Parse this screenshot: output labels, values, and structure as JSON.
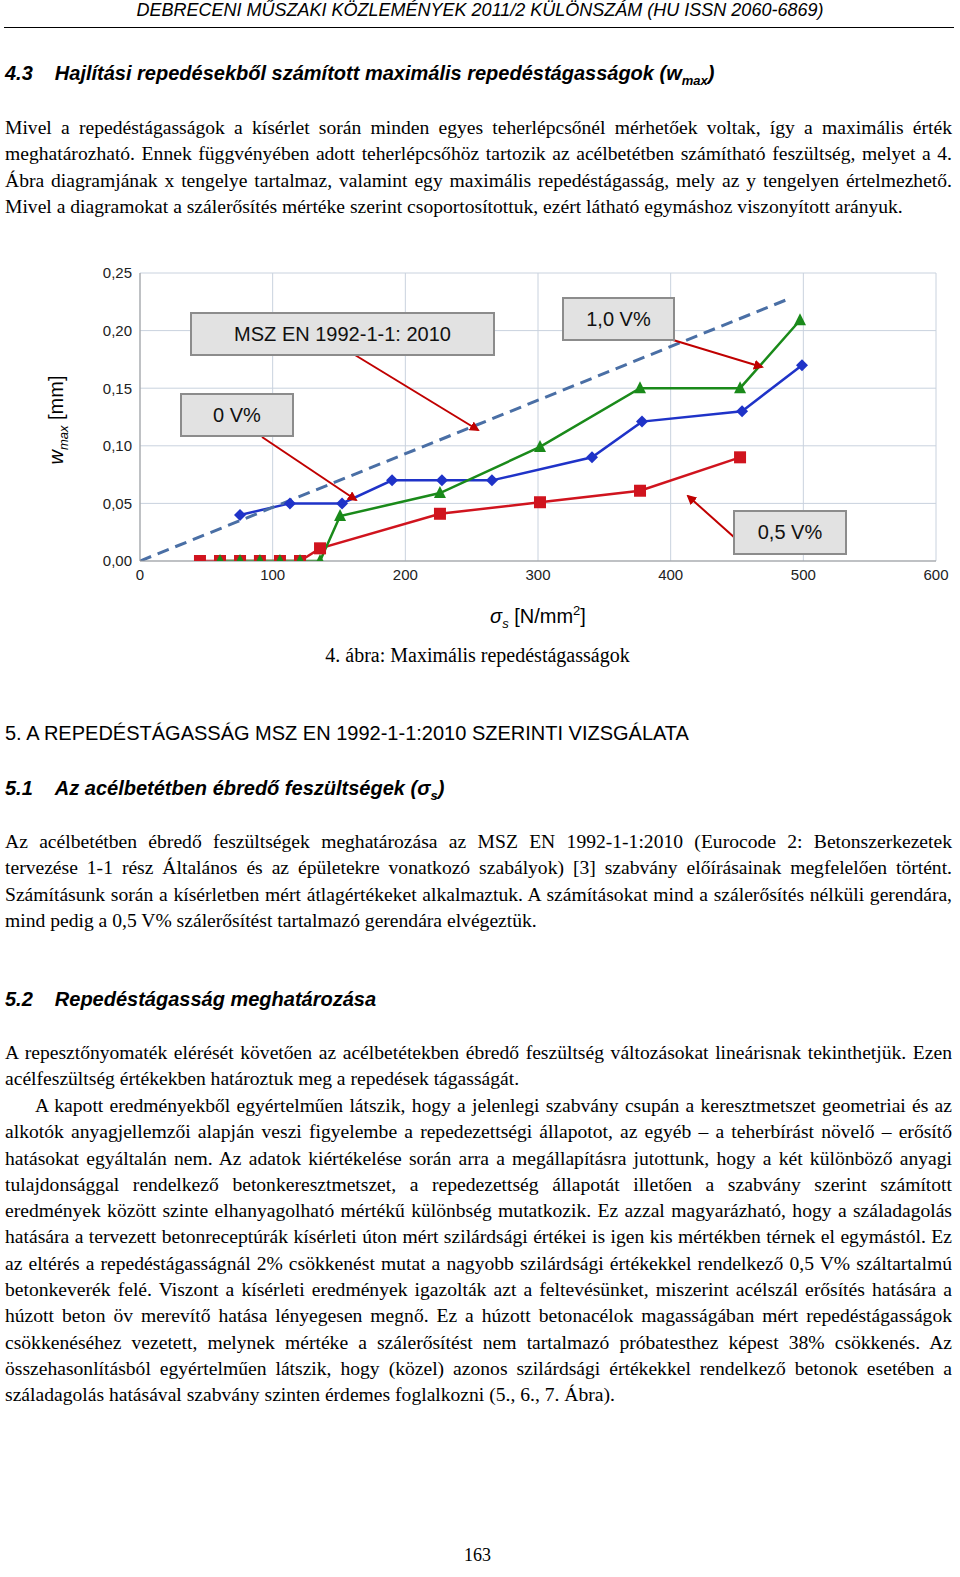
{
  "header": "DEBRECENI MŰSZAKI KÖZLEMÉNYEK 2011/2 KÜLÖNSZÁM (HU ISSN 2060-6869)",
  "section_4_3": {
    "number": "4.3",
    "title": [
      "Hajlítási repedésekből számított maximális repedéstágasságok (w",
      "max",
      ")"
    ],
    "paragraph": "Mivel a repedéstágasságok a kísérlet során minden egyes teherlépcsőnél mérhetőek voltak, így a maximális érték meghatározható. Ennek függvényében adott teherlépcsőhöz tartozik az acélbetétben számítható feszültség, melyet a 4. Ábra diagramjának x tengelye tartalmaz, valamint egy maximális repedéstágasság, mely az y tengelyen értelmezhető. Mivel a diagramokat a szálerősítés mértéke szerint csoportosítottuk, ezért látható egymáshoz viszonyított arányuk."
  },
  "chart_data": {
    "type": "line",
    "x_label": {
      "symbol": "σ",
      "sub": "s",
      "unit": " [N/mm",
      "sup": "2",
      "end": "]"
    },
    "y_label": {
      "symbol": "w",
      "sub": "max",
      "unit": " [mm]"
    },
    "xlim": [
      0,
      600
    ],
    "xticks": [
      0,
      100,
      200,
      300,
      400,
      500,
      600
    ],
    "ylim": [
      0,
      0.25
    ],
    "yticks": [
      {
        "value": 0,
        "label": "0,00"
      },
      {
        "value": 0.05,
        "label": "0,05"
      },
      {
        "value": 0.1,
        "label": "0,10"
      },
      {
        "value": 0.15,
        "label": "0,15"
      },
      {
        "value": 0.2,
        "label": "0,20"
      },
      {
        "value": 0.25,
        "label": "0,25"
      }
    ],
    "grid": true,
    "series": [
      {
        "name": "0 V%",
        "color": "#1f33c8",
        "marker": "diamond",
        "line_style": "solid",
        "x": [
          75.4,
          113,
          152.3,
          190,
          227.6,
          265.3,
          340.7,
          378.4,
          453.8,
          499
        ],
        "values": [
          0.04,
          0.05,
          0.05,
          0.07,
          0.07,
          0.07,
          0.09,
          0.121,
          0.13,
          0.17
        ]
      },
      {
        "name": "0,5 V%",
        "color": "#d0141e",
        "marker": "square",
        "line_style": "solid",
        "x": [
          45.2,
          60.3,
          75.4,
          90.4,
          105.5,
          120.6,
          135.7,
          226.1,
          301.5,
          376.9,
          452.3
        ],
        "values": [
          0,
          0,
          0,
          0,
          0,
          0,
          0.011,
          0.041,
          0.051,
          0.061,
          0.09
        ]
      },
      {
        "name": "1,0 V%",
        "color": "#1a8a1a",
        "marker": "triangle",
        "line_style": "solid",
        "x": [
          60.3,
          75.4,
          90.4,
          105.5,
          120.6,
          135.7,
          150.8,
          226.1,
          301.5,
          376.9,
          452.3,
          497.5
        ],
        "values": [
          0,
          0,
          0,
          0,
          0,
          0,
          0.039,
          0.059,
          0.099,
          0.15,
          0.15,
          0.209
        ]
      },
      {
        "name": "MSZ EN 1992-1-1: 2010",
        "color": "#4a6fa5",
        "marker": "none",
        "line_style": "dashed",
        "x": [
          0,
          490
        ],
        "values": [
          0,
          0.228
        ]
      }
    ]
  },
  "figure": {
    "caption": "4. ábra: Maximális repedéstágasságok"
  },
  "section_5": {
    "title": "5. A REPEDÉSTÁGASSÁG MSZ EN 1992-1-1:2010 SZERINTI VIZSGÁLATA"
  },
  "section_5_1": {
    "number": "5.1",
    "title": [
      "Az acélbetétben ébredő feszültségek (σ",
      "s",
      ")"
    ],
    "paragraph": "Az acélbetétben ébredő feszültségek meghatározása az MSZ EN 1992-1-1:2010 (Eurocode 2: Betonszerkezetek tervezése 1-1 rész Általános és az épületekre vonatkozó szabályok) [3] szabvány előírásainak megfelelően történt. Számításunk során a kísérletben mért átlagértékeket alkalmaztuk. A számításokat mind a szálerősítés nélküli gerendára, mind pedig a 0,5 V% szálerősítést tartalmazó gerendára elvégeztük."
  },
  "section_5_2": {
    "number": "5.2",
    "title": "Repedéstágasság meghatározása",
    "paragraphs": [
      "A repesztőnyomaték elérését követően az acélbetétekben ébredő feszültség változásokat lineárisnak tekinthetjük. Ezen acélfeszültség értékekben határoztuk meg a repedések tágasságát.",
      "A kapott eredményekből egyértelműen látszik, hogy a jelenlegi szabvány csupán a keresztmetszet geometriai és az alkotók anyagjellemzői alapján veszi figyelembe a repedezettségi állapotot, az egyéb – a teherbírást növelő – erősítő hatásokat egyáltalán nem. Az adatok kiértékelése során arra a megállapításra jutottunk, hogy a két különböző anyagi tulajdonsággal rendelkező betonkeresztmetszet, a repedezettség állapotát illetően a szabvány szerint számított eredmények között szinte elhanyagolható mértékű különbség mutatkozik. Ez azzal magyarázható, hogy a száladagolás hatására a tervezett betonreceptúrák kísérleti úton mért szilárdsági értékei is igen kis mértékben térnek el egymástól. Ez az eltérés a repedéstágasságnál 2% csökkenést mutat a nagyobb szilárdsági értékekkel rendelkező 0,5 V% száltartalmú betonkeverék felé. Viszont a kísérleti eredmények igazolták azt a feltevésünket, miszerint acélszál erősítés hatására a húzott beton öv merevítő hatása lényegesen megnő. Ez a húzott betonacélok magasságában mért repedéstágasságok csökkenéséhez vezetett, melynek mértéke a szálerősítést nem tartalmazó próbatesthez képest 38% csökkenés. Az összehasonlításból egyértelműen látszik, hogy (közel) azonos szilárdsági értékekkel rendelkező betonok esetében a száladagolás hatásával szabvány szinten érdemes foglalkozni (5., 6., 7. Ábra)."
    ]
  },
  "page_number": "163"
}
